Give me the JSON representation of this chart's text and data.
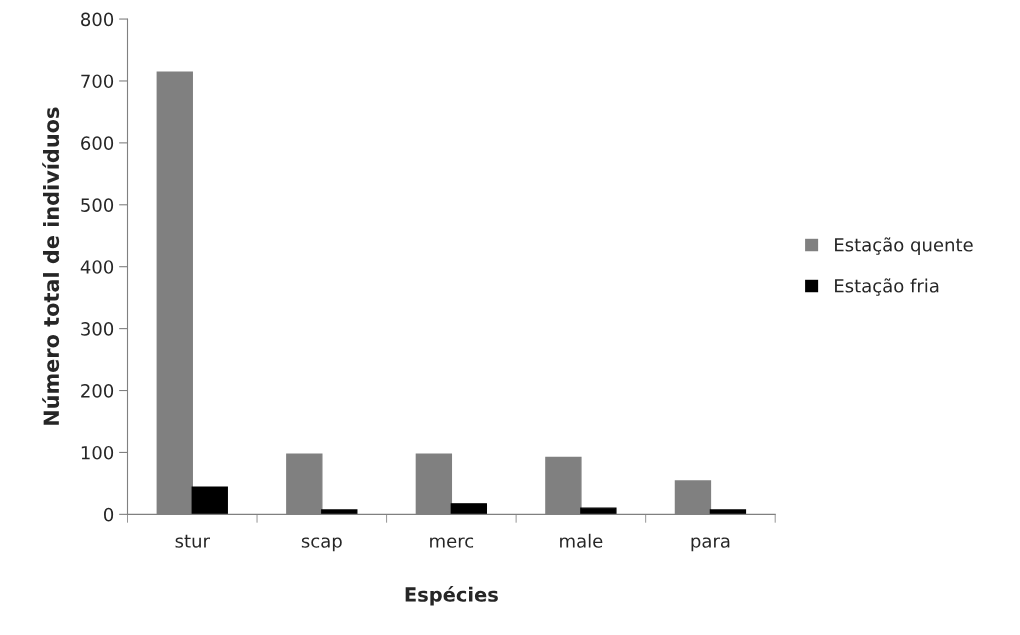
{
  "chart_data": {
    "type": "bar",
    "xlabel": "Espécies",
    "ylabel": "Número total de indivíduos",
    "categories": [
      "stur",
      "scap",
      "merc",
      "male",
      "para"
    ],
    "series": [
      {
        "name": "Estação quente",
        "color": "#808080",
        "values": [
          714,
          97,
          97,
          92,
          54
        ]
      },
      {
        "name": "Estação fria",
        "color": "#000000",
        "values": [
          44,
          7,
          17,
          10,
          7
        ]
      }
    ],
    "ylim": [
      0,
      800
    ],
    "yticks": [
      0,
      100,
      200,
      300,
      400,
      500,
      600,
      700,
      800
    ],
    "grid": false,
    "legend": "right"
  }
}
